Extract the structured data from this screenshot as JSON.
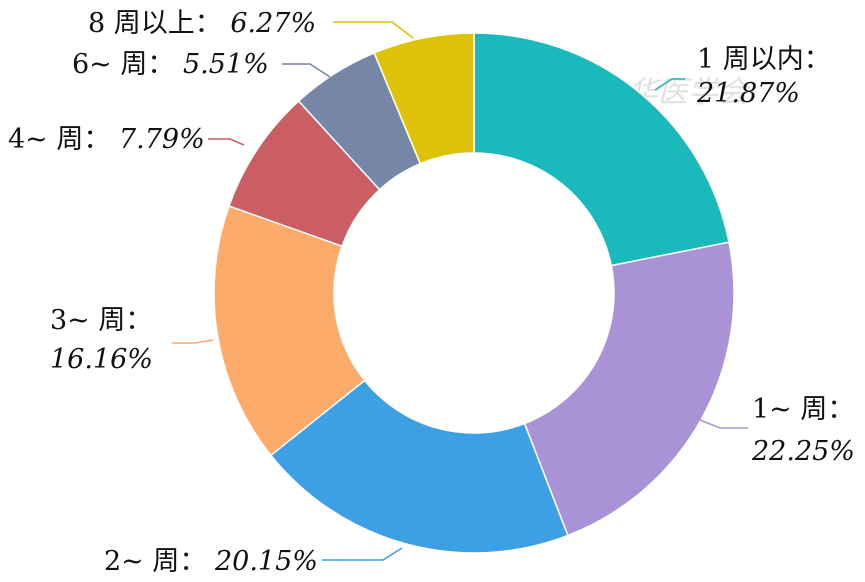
{
  "chart_data": {
    "type": "pie",
    "donut": true,
    "categories": [
      "1 周以内",
      "1~ 周",
      "2~ 周",
      "3~ 周",
      "4~ 周",
      "6~ 周",
      "8 周以上"
    ],
    "values": [
      21.87,
      22.25,
      20.15,
      16.16,
      7.79,
      5.51,
      6.27
    ],
    "value_labels": [
      "21.87%",
      "22.25%",
      "20.15%",
      "16.16%",
      "7.79%",
      "5.51%",
      "6.27%"
    ],
    "colors": [
      "#19b9bc",
      "#a993d6",
      "#3da0e5",
      "#fdab6a",
      "#cb5d64",
      "#7586a6",
      "#ddc208"
    ],
    "title": "",
    "legend": "none"
  },
  "labels": {
    "cat_1w": "1 周以内：",
    "val_1w": "21.87%",
    "cat_1": "1~ 周：",
    "val_1": "22.25%",
    "cat_2": "2~ 周：",
    "val_2": "20.15%",
    "cat_3": "3~ 周：",
    "val_3": "16.16%",
    "cat_4": "4~ 周：",
    "val_4": "7.79%",
    "cat_6": "6~ 周：",
    "val_6": "5.51%",
    "cat_8": "8 周以上：",
    "val_8": "6.27%"
  },
  "watermark": {
    "text": "中华医学会"
  }
}
